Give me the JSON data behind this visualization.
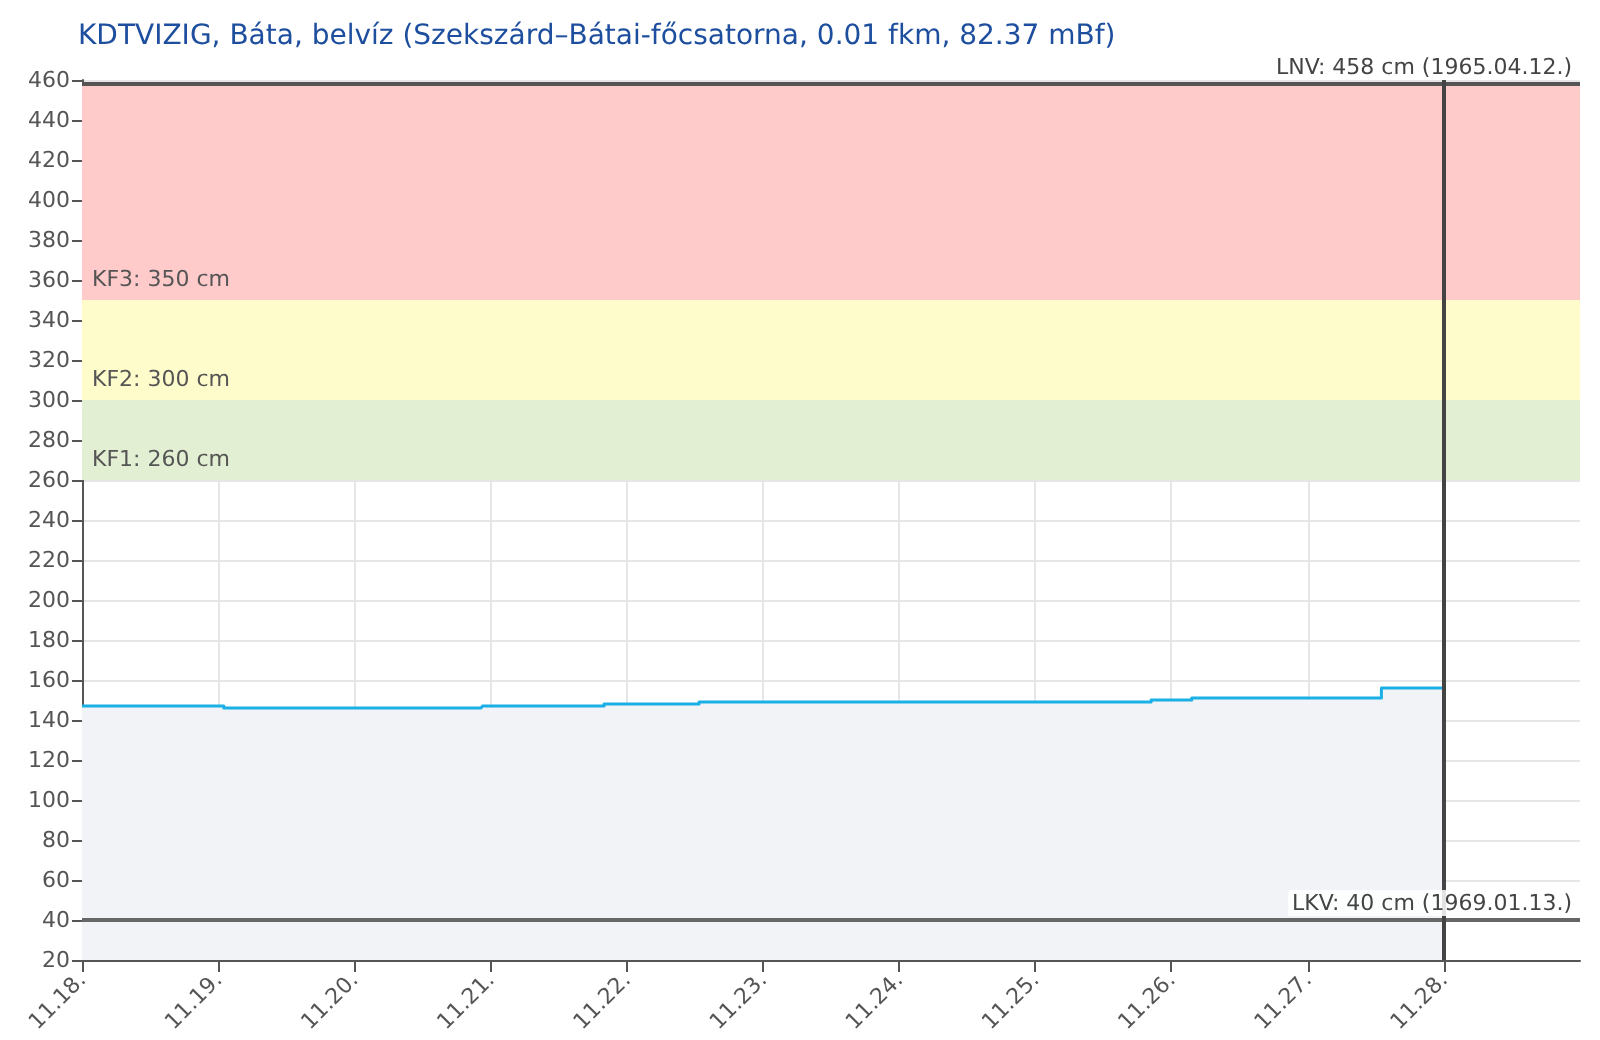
{
  "chart_data": {
    "type": "area",
    "title": "KDTVIZIG, Báta, belvíz (Szekszárd–Bátai-főcsatorna, 0.01 fkm, 82.37 mBf)",
    "series": [
      {
        "color": "#1ab0e6",
        "x": [
          "--11-18T00:00",
          "--11-19T01:00",
          "--11-19T01:00",
          "--11-20T22:20",
          "--11-20T22:35",
          "--11-21T20:00",
          "--11-21T20:00",
          "--11-22T12:45",
          "--11-22T12:45",
          "--11-25T20:25",
          "--11-25T20:25",
          "--11-26T03:35",
          "--11-26T03:35",
          "--11-27T13:00",
          "--11-27T13:00",
          "--11-28T00:00"
        ],
        "values": [
          147,
          147,
          146,
          146,
          147,
          147,
          148,
          148,
          149,
          149,
          150,
          150,
          151,
          151,
          156,
          156
        ]
      }
    ],
    "xlim": [
      "--11-18",
      "--11-29"
    ],
    "xticks": [
      {
        "value": "--11-18",
        "label": "11.18."
      },
      {
        "value": "--11-19",
        "label": "11.19."
      },
      {
        "value": "--11-20",
        "label": "11.20."
      },
      {
        "value": "--11-21",
        "label": "11.21."
      },
      {
        "value": "--11-22",
        "label": "11.22."
      },
      {
        "value": "--11-23",
        "label": "11.23."
      },
      {
        "value": "--11-24",
        "label": "11.24."
      },
      {
        "value": "--11-25",
        "label": "11.25."
      },
      {
        "value": "--11-26",
        "label": "11.26."
      },
      {
        "value": "--11-27",
        "label": "11.27."
      },
      {
        "value": "--11-28",
        "label": "11.28."
      }
    ],
    "ylim": [
      20,
      460
    ],
    "yticks": [
      20,
      40,
      60,
      80,
      100,
      120,
      140,
      160,
      180,
      200,
      220,
      240,
      260,
      280,
      300,
      320,
      340,
      360,
      380,
      400,
      420,
      440,
      460
    ],
    "bands": [
      {
        "axis": "y",
        "from": 260,
        "to": 300,
        "label": "KF1: 260 cm",
        "color": "#e3efd2"
      },
      {
        "axis": "y",
        "from": 300,
        "to": 350,
        "label": "KF2: 300 cm",
        "color": "#fefccb"
      },
      {
        "axis": "y",
        "from": 350,
        "to": 458,
        "label": "KF3: 350 cm",
        "color": "#fecaca"
      }
    ],
    "ref_lines": [
      {
        "axis": "y",
        "value": 458,
        "label": "LNV: 458 cm (1965.04.12.)",
        "color": "#555555"
      },
      {
        "axis": "y",
        "value": 40,
        "label": "LKV: 40 cm (1969.01.13.)",
        "color": "#666666"
      },
      {
        "axis": "x",
        "value": "--11-28",
        "label": null,
        "color": "#444444"
      }
    ],
    "grid": true,
    "marker": "none",
    "line_style": "solid"
  }
}
